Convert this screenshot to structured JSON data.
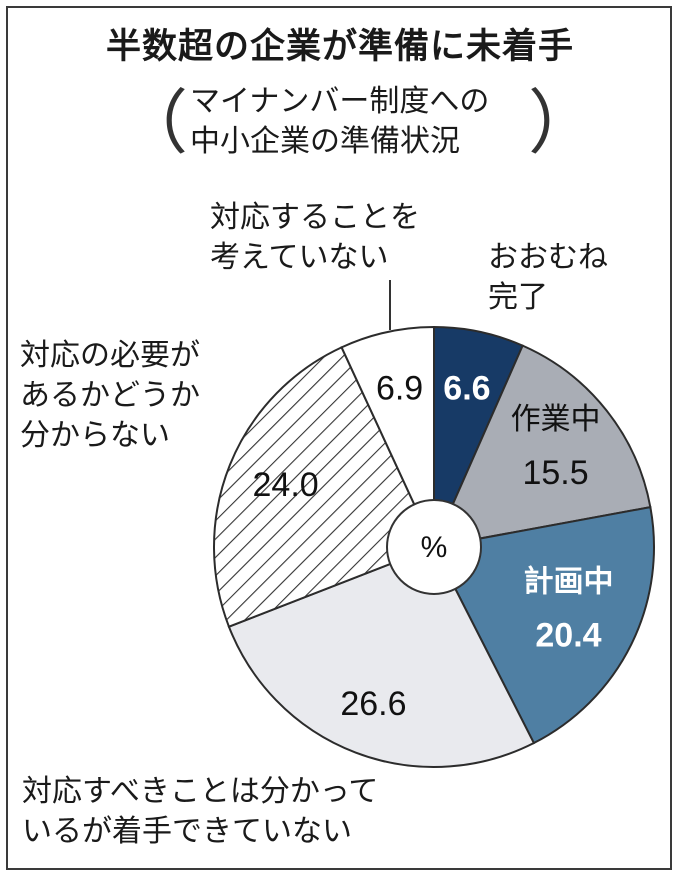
{
  "title": "半数超の企業が準備に未着手",
  "subtitle": {
    "line1": "マイナンバー制度への",
    "line2": "中小企業の準備状況",
    "open_paren": "（",
    "close_paren": "）"
  },
  "center_unit": "%",
  "labels": {
    "kanryo": "おおむね\n完了",
    "sagyo": "作業中",
    "keikaku": "計画中",
    "subeki": "対応すべきことは分かって\nいるが着手できていない",
    "hitsuyo": "対応の必要が\nあるかどうか\n分からない",
    "kangaete": "対応することを\n考えていない"
  },
  "colors": {
    "navy": "#173a66",
    "gray": "#a9adb5",
    "blue": "#4f7fa3",
    "light": "#e9eaee",
    "hatch": "#ffffff",
    "white": "#ffffff"
  },
  "chart_data": {
    "type": "pie",
    "style": "donut",
    "start": "12 o'clock, clockwise",
    "unit": "%",
    "slices": [
      {
        "name": "おおむね完了",
        "value": 6.6,
        "color": "#173a66",
        "label_color": "#ffffff"
      },
      {
        "name": "作業中",
        "value": 15.5,
        "color": "#a9adb5",
        "label_color": "#111111"
      },
      {
        "name": "計画中",
        "value": 20.4,
        "color": "#4f7fa3",
        "label_color": "#ffffff"
      },
      {
        "name": "対応すべきことは分かっているが着手できていない",
        "value": 26.6,
        "color": "#e9eaee",
        "label_color": "#111111"
      },
      {
        "name": "対応の必要があるかどうか分からない",
        "value": 24.0,
        "color": "hatch",
        "label_color": "#111111"
      },
      {
        "name": "対応することを考えていない",
        "value": 6.9,
        "color": "#ffffff",
        "label_color": "#111111"
      }
    ]
  }
}
